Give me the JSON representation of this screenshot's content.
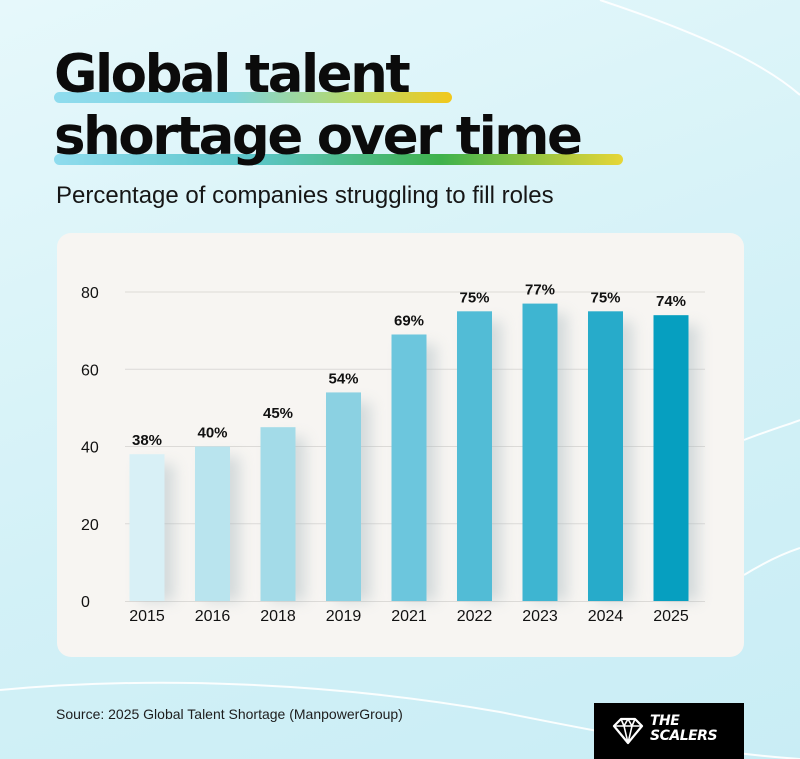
{
  "header": {
    "title_line1": "Global talent",
    "title_line2": "shortage over time",
    "subtitle": "Percentage of companies struggling to fill roles"
  },
  "footer": {
    "source": "Source: 2025 Global Talent Shortage (ManpowerGroup)",
    "logo_line1": "THE",
    "logo_line2": "SCALERS"
  },
  "colors": {
    "bars": [
      "#d8f0f6",
      "#b9e4ee",
      "#a3dbe8",
      "#8bd1e2",
      "#6cc6dd",
      "#52bcd6",
      "#3eb5d1",
      "#27abca",
      "#069fc0"
    ],
    "gridline": "#dcdad7",
    "text": "#111111"
  },
  "chart_data": {
    "type": "bar",
    "categories": [
      "2015",
      "2016",
      "2018",
      "2019",
      "2021",
      "2022",
      "2023",
      "2024",
      "2025"
    ],
    "values": [
      38,
      40,
      45,
      54,
      69,
      75,
      77,
      75,
      74
    ],
    "data_labels": [
      "38%",
      "40%",
      "45%",
      "54%",
      "69%",
      "75%",
      "77%",
      "75%",
      "74%"
    ],
    "ylim": [
      0,
      80
    ],
    "yticks": [
      0,
      20,
      40,
      60,
      80
    ],
    "grid": true,
    "xlabel": "",
    "ylabel": ""
  }
}
